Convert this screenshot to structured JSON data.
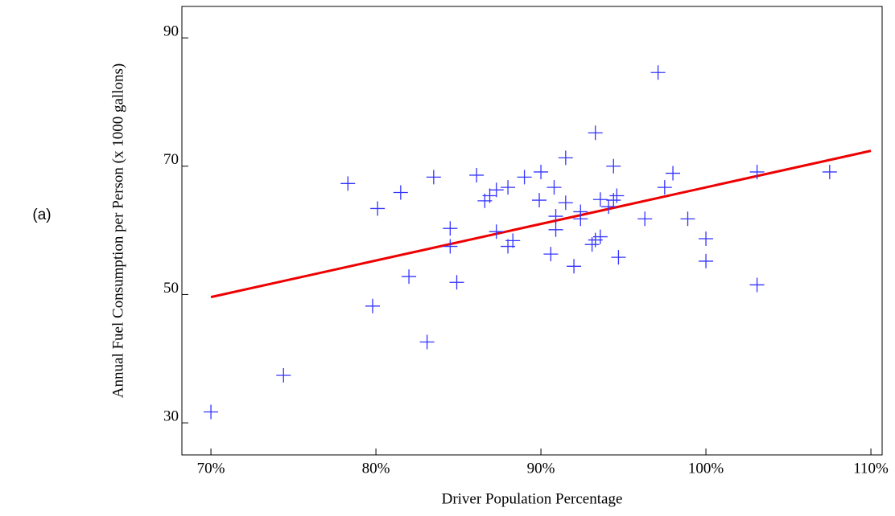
{
  "panel_label": "(a)",
  "chart_data": {
    "type": "scatter",
    "x_label": "Driver Population Percentage",
    "y_label": "Annual Fuel Consumption per Person (x 1000 gallons)",
    "xlim": [
      68.24,
      110.68
    ],
    "ylim": [
      25,
      94.9
    ],
    "xticks": [
      {
        "value": 70,
        "label": "70%"
      },
      {
        "value": 80,
        "label": "80%"
      },
      {
        "value": 90,
        "label": "90%"
      },
      {
        "value": 100,
        "label": "100%"
      },
      {
        "value": 110,
        "label": "110%"
      }
    ],
    "yticks": [
      30,
      50,
      70,
      90
    ],
    "grid": false,
    "series": [
      {
        "color": "#3333ff",
        "x": [
          70.0,
          74.4,
          78.3,
          80.1,
          79.8,
          81.5,
          82.0,
          83.1,
          83.5,
          84.5,
          84.5,
          84.9,
          86.1,
          86.6,
          86.9,
          87.3,
          87.3,
          88.0,
          88.0,
          88.3,
          89.0,
          90.0,
          89.9,
          90.6,
          90.8,
          90.9,
          90.9,
          91.5,
          91.5,
          92.0,
          92.4,
          92.4,
          93.1,
          93.3,
          93.3,
          93.6,
          93.6,
          94.1,
          94.4,
          94.6,
          94.7,
          94.4,
          97.1,
          96.3,
          97.5,
          98.0,
          98.9,
          100.0,
          100.0,
          103.1,
          103.1,
          107.5
        ],
        "values": [
          31.7,
          37.4,
          67.3,
          63.4,
          48.2,
          65.9,
          52.8,
          42.6,
          68.3,
          60.3,
          57.5,
          51.9,
          68.6,
          64.6,
          65.4,
          66.3,
          59.8,
          66.7,
          57.5,
          58.4,
          68.3,
          69.1,
          64.7,
          56.3,
          66.7,
          62.2,
          60.1,
          71.3,
          64.3,
          54.4,
          62.9,
          61.8,
          57.8,
          58.5,
          75.2,
          64.8,
          59.0,
          63.7,
          70.0,
          65.4,
          55.8,
          64.7,
          84.6,
          61.8,
          66.7,
          68.9,
          61.8,
          58.7,
          55.2,
          51.5,
          69.1,
          69.1
        ]
      }
    ],
    "fit_line": {
      "color": "#ee0000",
      "x": [
        70,
        110
      ],
      "values": [
        49.6,
        72.4
      ]
    }
  }
}
